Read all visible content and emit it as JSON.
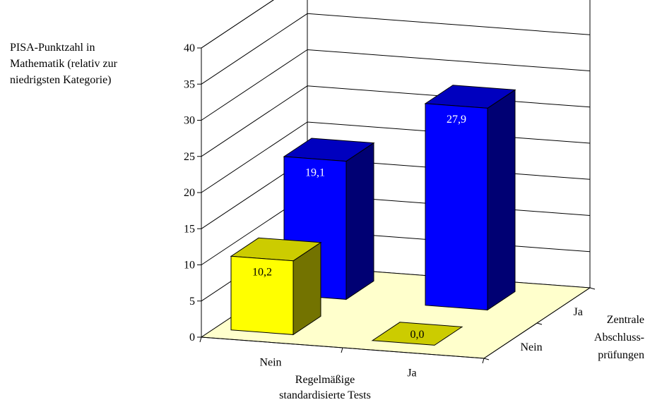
{
  "chart_data": {
    "type": "bar",
    "title": "",
    "ylabel": [
      "PISA-Punktzahl in",
      "Mathematik (relativ zur",
      "niedrigsten Kategorie)"
    ],
    "x_axis": {
      "label": [
        "Regelmäßige",
        "standardisierte Tests"
      ],
      "categories": [
        "Nein",
        "Ja"
      ]
    },
    "depth_axis": {
      "label": [
        "Zentrale",
        "Abschluss-",
        "prüfungen"
      ],
      "categories": [
        "Nein",
        "Ja"
      ]
    },
    "ylim": [
      0,
      40
    ],
    "yticks": [
      "0",
      "5",
      "10",
      "15",
      "20",
      "25",
      "30",
      "35",
      "40"
    ],
    "bars": [
      {
        "tests": "Nein",
        "pruefungen": "Nein",
        "value": 10.2,
        "label": "10,2",
        "color": "#ffff00"
      },
      {
        "tests": "Ja",
        "pruefungen": "Nein",
        "value": 0.0,
        "label": "0,0",
        "color": "#cccc00"
      },
      {
        "tests": "Nein",
        "pruefungen": "Ja",
        "value": 19.1,
        "label": "19,1",
        "color": "#0000ff"
      },
      {
        "tests": "Ja",
        "pruefungen": "Ja",
        "value": 27.9,
        "label": "27,9",
        "color": "#0000ff"
      }
    ],
    "grid": true,
    "floor_color": "#ffffcc"
  }
}
